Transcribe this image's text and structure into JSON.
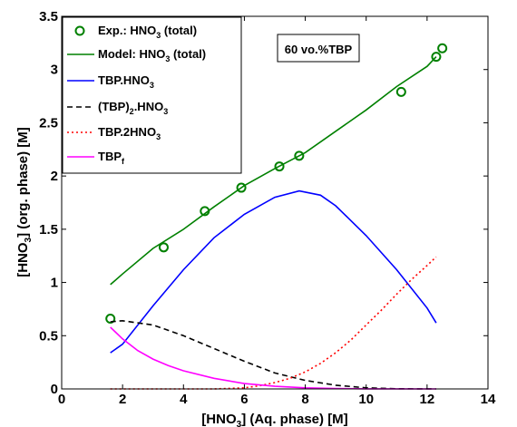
{
  "chart_data": {
    "type": "line",
    "xlabel": {
      "main": "[HNO",
      "sub": "3",
      "rest": "] (Aq. phase)  [M]"
    },
    "ylabel": {
      "main": "[HNO",
      "sub": "3",
      "rest": "] (org. phase)  [M]"
    },
    "xlim": [
      0,
      14
    ],
    "ylim": [
      0,
      3.5
    ],
    "x_ticks": [
      "0",
      "2",
      "4",
      "6",
      "8",
      "10",
      "12",
      "14"
    ],
    "y_ticks": [
      "0",
      "0.5",
      "1",
      "1.5",
      "2",
      "2.5",
      "3",
      "3.5"
    ],
    "x_tick_values": [
      0,
      2,
      4,
      6,
      8,
      10,
      12,
      14
    ],
    "y_tick_values": [
      0,
      0.5,
      1,
      1.5,
      2,
      2.5,
      3,
      3.5
    ],
    "grid": false,
    "legend_position": "top-left",
    "annotation": "60 vo.%TBP",
    "series": [
      {
        "name": "Exp.: HNO3 (total)",
        "label": {
          "main": "Exp.: HNO",
          "sub": "3",
          "rest": " (total)"
        },
        "style": "marker",
        "color": "#008000",
        "x": [
          1.6,
          3.35,
          4.7,
          5.9,
          7.15,
          7.8,
          11.15,
          12.3,
          12.5
        ],
        "y": [
          0.66,
          1.33,
          1.67,
          1.89,
          2.09,
          2.19,
          2.79,
          3.12,
          3.2
        ]
      },
      {
        "name": "Model: HNO3 (total)",
        "label": {
          "main": "Model: HNO",
          "sub": "3",
          "rest": " (total)"
        },
        "style": "solid",
        "color": "#008000",
        "x": [
          1.6,
          2,
          3,
          4,
          5,
          6,
          7,
          8,
          9,
          10,
          11,
          12,
          12.3
        ],
        "y": [
          0.98,
          1.08,
          1.32,
          1.5,
          1.71,
          1.91,
          2.07,
          2.22,
          2.42,
          2.62,
          2.84,
          3.03,
          3.12
        ]
      },
      {
        "name": "TBP.HNO3",
        "label": {
          "main": "TBP.HNO",
          "sub": "3",
          "rest": ""
        },
        "style": "solid",
        "color": "#0000ff",
        "x": [
          1.6,
          2,
          3,
          4,
          5,
          6,
          7,
          7.8,
          8.5,
          9,
          10,
          11,
          12,
          12.3
        ],
        "y": [
          0.34,
          0.42,
          0.78,
          1.12,
          1.42,
          1.64,
          1.8,
          1.86,
          1.82,
          1.72,
          1.44,
          1.12,
          0.76,
          0.62
        ]
      },
      {
        "name": "(TBP)2.HNO3",
        "label": {
          "main": "(TBP)",
          "sub": "2",
          "rest": ".HNO",
          "sub2": "3"
        },
        "style": "dashed",
        "color": "#000000",
        "x": [
          1.6,
          2,
          3,
          4,
          5,
          6,
          7,
          8,
          9,
          10,
          11,
          12.3
        ],
        "y": [
          0.63,
          0.64,
          0.6,
          0.5,
          0.38,
          0.26,
          0.15,
          0.08,
          0.035,
          0.01,
          0.002,
          0
        ]
      },
      {
        "name": "TBP.2HNO3",
        "label": {
          "main": "TBP.2HNO",
          "sub": "3",
          "rest": ""
        },
        "style": "dotted",
        "color": "#ff0000",
        "x": [
          1.6,
          5,
          6,
          6.5,
          7,
          7.5,
          8,
          8.5,
          9,
          9.5,
          10,
          10.5,
          11,
          11.5,
          12,
          12.3
        ],
        "y": [
          0,
          0,
          0.01,
          0.03,
          0.06,
          0.1,
          0.16,
          0.24,
          0.34,
          0.46,
          0.6,
          0.74,
          0.89,
          1.03,
          1.16,
          1.24
        ]
      },
      {
        "name": "TBPf",
        "label": {
          "main": "TBP",
          "sub": "f",
          "rest": ""
        },
        "style": "solid",
        "color": "#ff00ff",
        "x": [
          1.6,
          2,
          2.5,
          3,
          3.5,
          4,
          5,
          6,
          7,
          8,
          9,
          10,
          12.3
        ],
        "y": [
          0.58,
          0.47,
          0.36,
          0.28,
          0.22,
          0.17,
          0.1,
          0.05,
          0.025,
          0.01,
          0.004,
          0.001,
          0
        ]
      }
    ]
  }
}
